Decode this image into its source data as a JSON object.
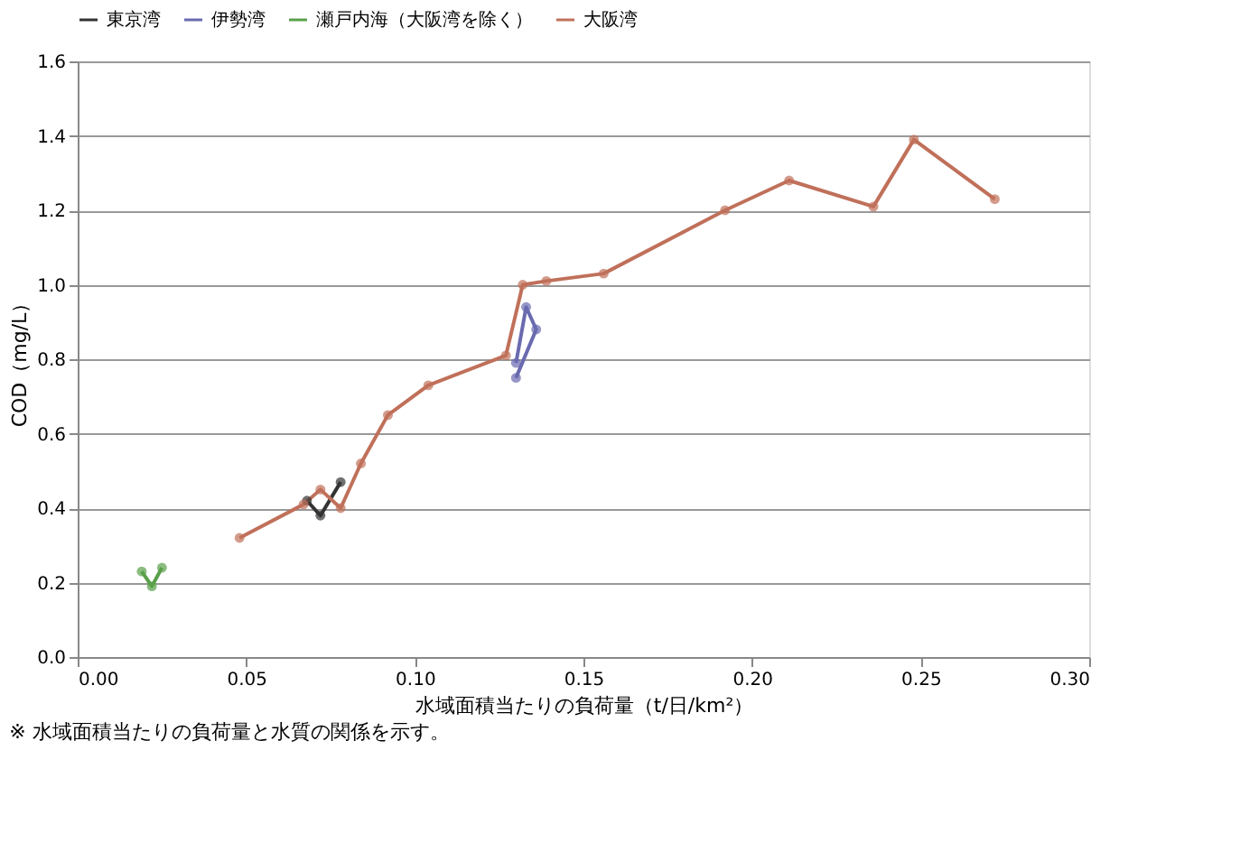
{
  "chart_data": {
    "type": "line",
    "xlabel": "水域面積当たりの負荷量（t/日/km²）",
    "ylabel": "COD（mg/L）",
    "annotations": [
      "※ 水域面積当たりの負荷量と水質の関係を示す。"
    ],
    "xlim": [
      0,
      0.3
    ],
    "ylim": [
      0,
      1.6
    ],
    "xticks": [
      {
        "value": 0,
        "label": "0.00"
      },
      {
        "value": 0.05,
        "label": "0.05"
      },
      {
        "value": 0.1,
        "label": "0.10"
      },
      {
        "value": 0.15,
        "label": "0.15"
      },
      {
        "value": 0.2,
        "label": "0.20"
      },
      {
        "value": 0.25,
        "label": "0.25"
      },
      {
        "value": 0.3,
        "label": "0.30"
      }
    ],
    "yticks": [
      {
        "value": 0,
        "label": "0.0"
      },
      {
        "value": 0.2,
        "label": "0.2"
      },
      {
        "value": 0.4,
        "label": "0.4"
      },
      {
        "value": 0.6,
        "label": "0.6"
      },
      {
        "value": 0.8,
        "label": "0.8"
      },
      {
        "value": 1.0,
        "label": "1.0"
      },
      {
        "value": 1.2,
        "label": "1.2"
      },
      {
        "value": 1.4,
        "label": "1.4"
      },
      {
        "value": 1.6,
        "label": "1.6"
      }
    ],
    "grid": "y",
    "legend": "top",
    "marker": "circle",
    "line_style": "solid",
    "series": [
      {
        "name": "東京湾",
        "color": "#333333",
        "x": [
          0.068,
          0.072,
          0.078
        ],
        "values": [
          0.42,
          0.38,
          0.47
        ]
      },
      {
        "name": "伊勢湾",
        "color": "#6a6ab0",
        "x": [
          0.13,
          0.133,
          0.136,
          0.13
        ],
        "values": [
          0.79,
          0.94,
          0.88,
          0.75
        ]
      },
      {
        "name": "瀬戸内海（大阪湾を除く）",
        "color": "#5aa04a",
        "x": [
          0.019,
          0.022,
          0.025
        ],
        "values": [
          0.23,
          0.19,
          0.24
        ]
      },
      {
        "name": "大阪湾",
        "color": "#c0705a",
        "x": [
          0.048,
          0.067,
          0.072,
          0.078,
          0.084,
          0.092,
          0.104,
          0.127,
          0.132,
          0.139,
          0.156,
          0.192,
          0.211,
          0.236,
          0.248,
          0.272
        ],
        "values": [
          0.32,
          0.41,
          0.45,
          0.4,
          0.52,
          0.65,
          0.73,
          0.81,
          1.0,
          1.01,
          1.03,
          1.2,
          1.28,
          1.21,
          1.39,
          1.23
        ]
      }
    ]
  }
}
